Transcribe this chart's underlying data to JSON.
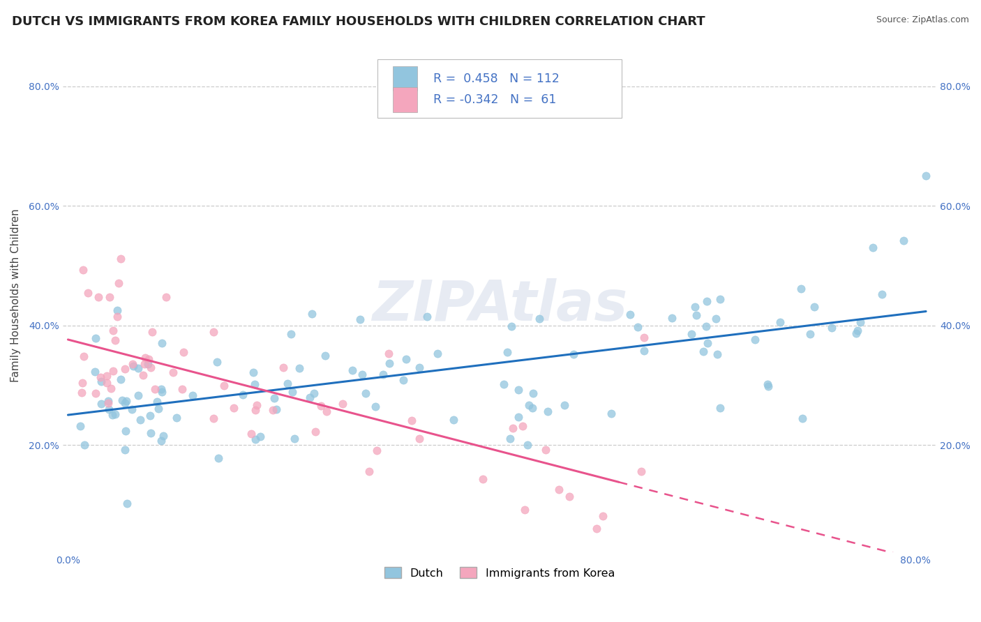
{
  "title": "DUTCH VS IMMIGRANTS FROM KOREA FAMILY HOUSEHOLDS WITH CHILDREN CORRELATION CHART",
  "source": "Source: ZipAtlas.com",
  "ylabel": "Family Households with Children",
  "watermark": "ZIPAtlas",
  "dutch_color": "#92c5de",
  "korean_color": "#f4a6bd",
  "dutch_line_color": "#1f6fbd",
  "korean_line_color": "#e8538c",
  "R_dutch": 0.458,
  "N_dutch": 112,
  "R_korean": -0.342,
  "N_korean": 61,
  "xlim": [
    -0.005,
    0.82
  ],
  "ylim": [
    0.02,
    0.88
  ],
  "xtick_positions": [
    0.0,
    0.1,
    0.2,
    0.3,
    0.4,
    0.5,
    0.6,
    0.7,
    0.8
  ],
  "xtick_labels": [
    "0.0%",
    "",
    "",
    "",
    "",
    "",
    "",
    "",
    "80.0%"
  ],
  "ytick_positions": [
    0.2,
    0.4,
    0.6,
    0.8
  ],
  "ytick_labels": [
    "20.0%",
    "40.0%",
    "60.0%",
    "80.0%"
  ],
  "background_color": "#ffffff",
  "grid_color": "#cccccc",
  "title_fontsize": 13,
  "axis_label_fontsize": 11,
  "tick_fontsize": 10,
  "tick_color": "#4472c4",
  "legend_label1": "Dutch",
  "legend_label2": "Immigrants from Korea"
}
